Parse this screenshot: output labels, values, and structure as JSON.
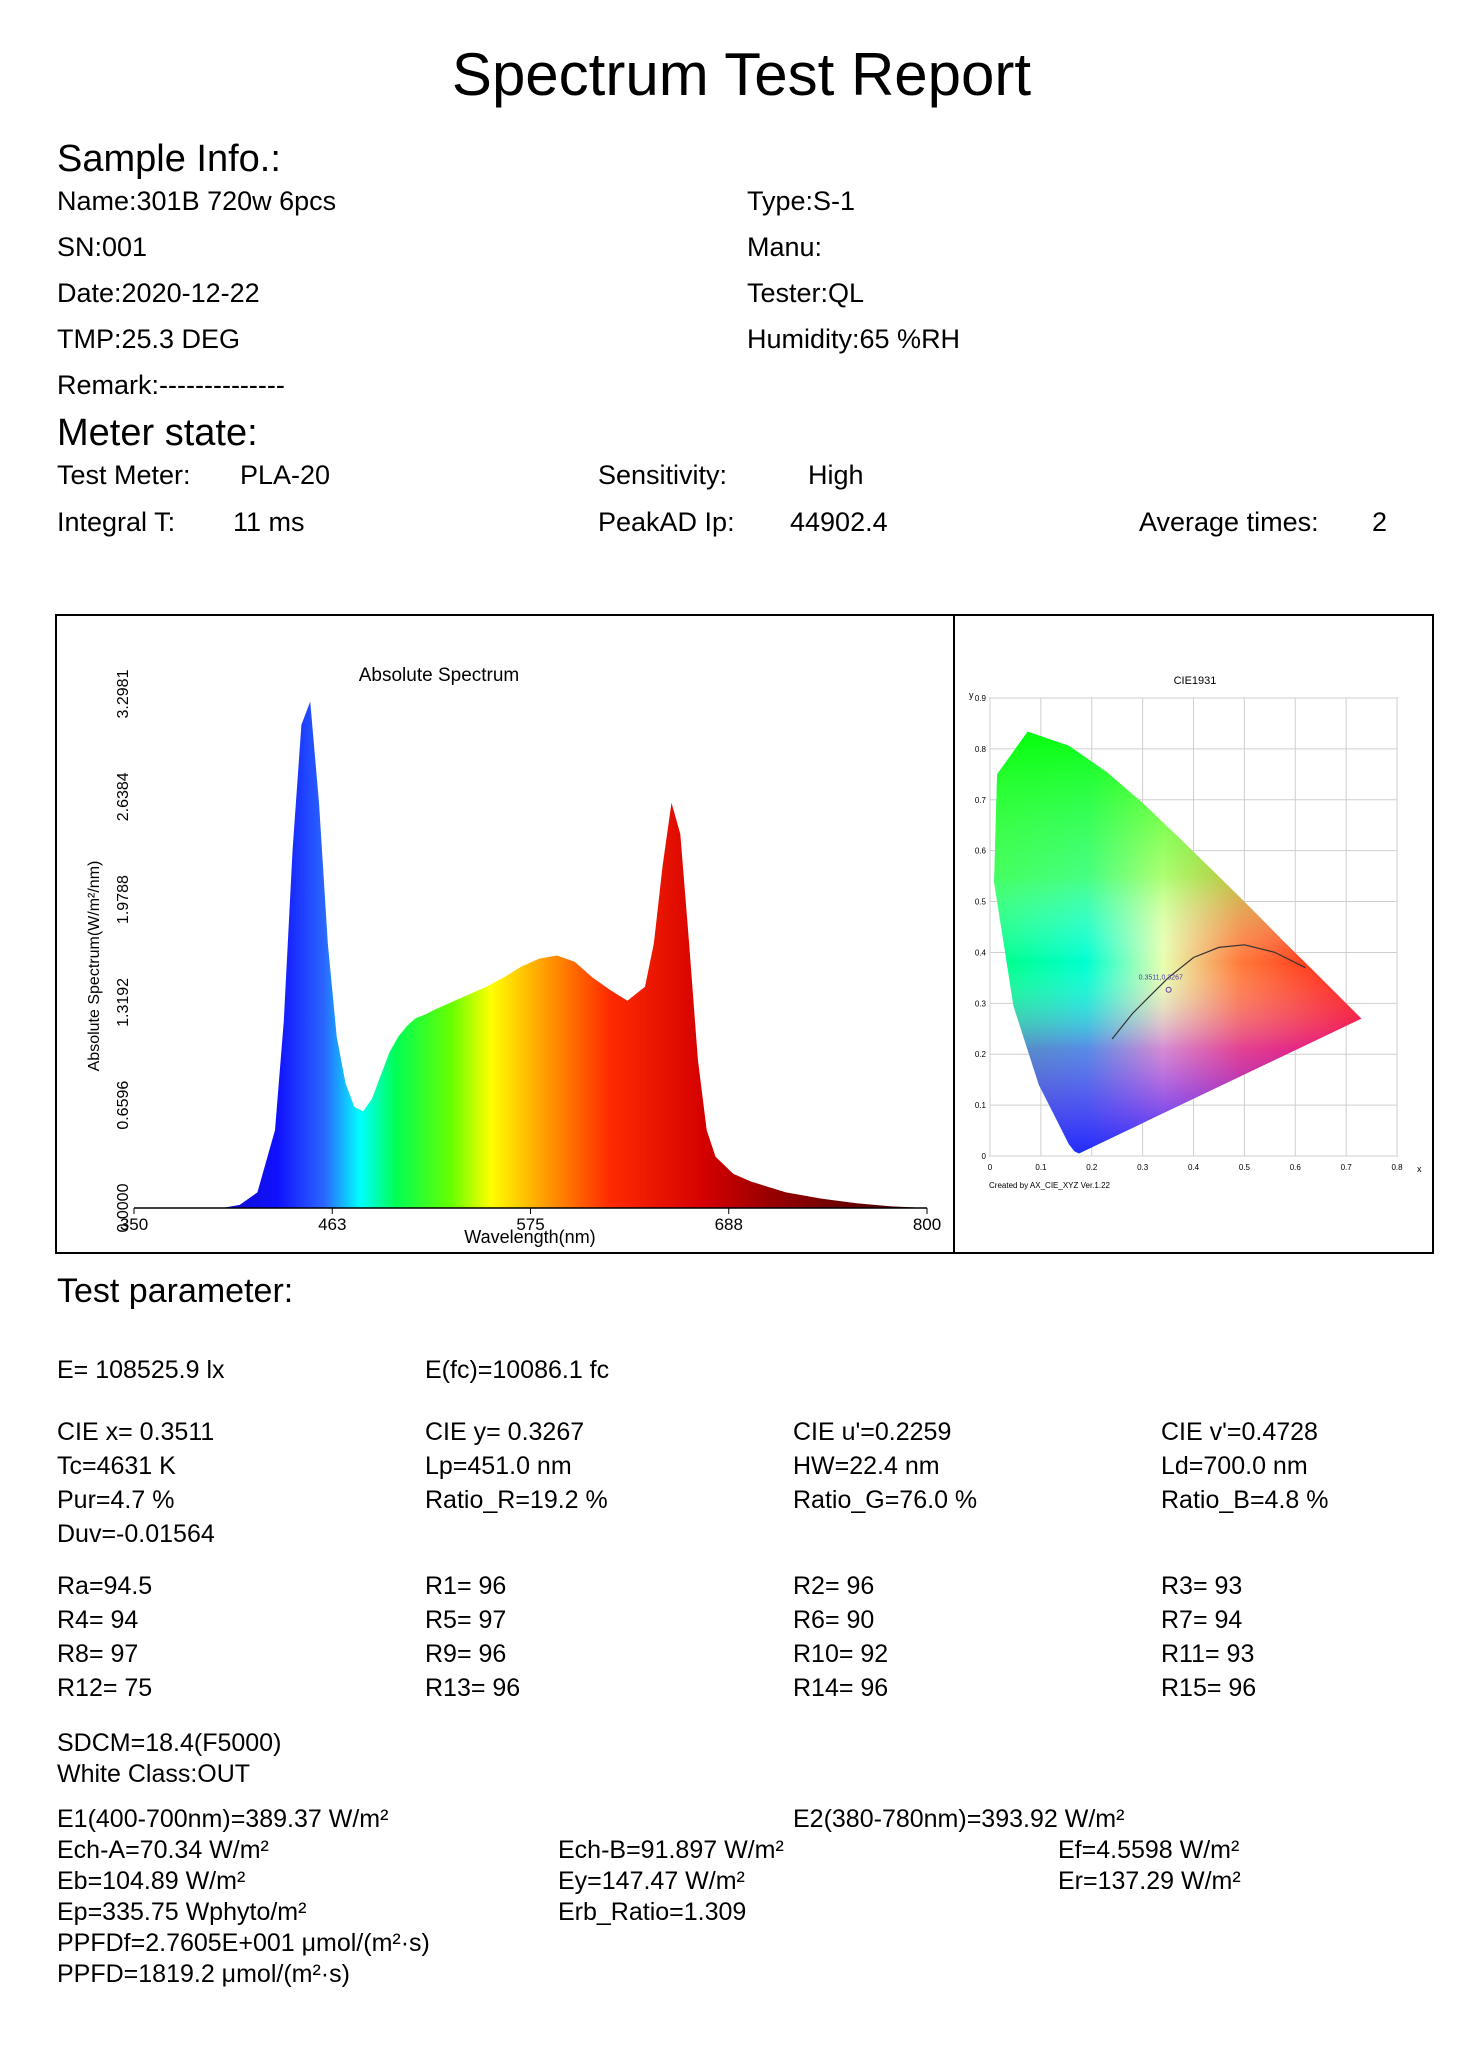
{
  "report_title": "Spectrum Test Report",
  "sample_info": {
    "heading": "Sample Info.:",
    "name": "Name:301B 720w 6pcs",
    "type": "Type:S-1",
    "sn": "SN:001",
    "manu": "Manu:",
    "date": "Date:2020-12-22",
    "tester": "Tester:QL",
    "tmp": "TMP:25.3 DEG",
    "humidity": "Humidity:65 %RH",
    "remark": "Remark:--------------"
  },
  "meter_state": {
    "heading": "Meter state:",
    "test_meter_label": "Test Meter:",
    "test_meter_value": "PLA-20",
    "sensitivity_label": "Sensitivity:",
    "sensitivity_value": "High",
    "integral_label": "Integral T:",
    "integral_value": "11 ms",
    "peakad_label": "PeakAD Ip:",
    "peakad_value": "44902.4",
    "avg_label": "Average times:",
    "avg_value": "2"
  },
  "chart_data": [
    {
      "type": "area",
      "title": "Absolute Spectrum",
      "xlabel": "Wavelength(nm)",
      "ylabel": "Absolute Spectrum(W/m²/nm)",
      "xlim": [
        350,
        800
      ],
      "ylim": [
        0,
        3.2981
      ],
      "x_ticks": [
        "350",
        "463",
        "575",
        "688",
        "800"
      ],
      "y_ticks": [
        "0.0000",
        "0.6596",
        "1.3192",
        "1.9788",
        "2.6384",
        "3.2981"
      ],
      "x": [
        350,
        400,
        410,
        420,
        430,
        435,
        440,
        445,
        450,
        455,
        460,
        465,
        470,
        475,
        480,
        485,
        490,
        495,
        500,
        505,
        510,
        515,
        520,
        530,
        540,
        550,
        560,
        570,
        580,
        590,
        600,
        610,
        620,
        630,
        640,
        645,
        650,
        655,
        660,
        665,
        670,
        675,
        680,
        690,
        700,
        720,
        740,
        760,
        780,
        800
      ],
      "y": [
        0.0,
        0.0,
        0.02,
        0.1,
        0.5,
        1.2,
        2.3,
        3.1,
        3.25,
        2.6,
        1.7,
        1.1,
        0.8,
        0.65,
        0.62,
        0.7,
        0.85,
        1.0,
        1.1,
        1.17,
        1.22,
        1.24,
        1.27,
        1.32,
        1.37,
        1.42,
        1.48,
        1.55,
        1.6,
        1.62,
        1.58,
        1.48,
        1.4,
        1.33,
        1.42,
        1.7,
        2.2,
        2.6,
        2.4,
        1.7,
        0.95,
        0.5,
        0.33,
        0.22,
        0.17,
        0.1,
        0.06,
        0.03,
        0.01,
        0.0
      ]
    },
    {
      "type": "scatter",
      "title": "CIE1931",
      "xlabel": "x",
      "ylabel": "y",
      "xlim": [
        0,
        0.8
      ],
      "ylim": [
        0,
        0.9
      ],
      "x_ticks": [
        "0",
        "0.1",
        "0.2",
        "0.3",
        "0.4",
        "0.5",
        "0.6",
        "0.7",
        "0.8"
      ],
      "y_ticks": [
        "0",
        "0.1",
        "0.2",
        "0.3",
        "0.4",
        "0.5",
        "0.6",
        "0.7",
        "0.8",
        "0.9"
      ],
      "point_label": "0.3511,0.3267",
      "point": [
        0.3511,
        0.3267
      ],
      "locus_x": [
        0.175,
        0.166,
        0.155,
        0.13,
        0.096,
        0.046,
        0.008,
        0.014,
        0.074,
        0.155,
        0.23,
        0.302,
        0.373,
        0.444,
        0.513,
        0.575,
        0.627,
        0.666,
        0.692,
        0.707,
        0.73
      ],
      "locus_y": [
        0.005,
        0.009,
        0.023,
        0.073,
        0.14,
        0.295,
        0.538,
        0.75,
        0.834,
        0.806,
        0.754,
        0.692,
        0.624,
        0.555,
        0.487,
        0.424,
        0.373,
        0.334,
        0.308,
        0.293,
        0.27
      ],
      "planck_x": [
        0.24,
        0.28,
        0.31,
        0.35,
        0.4,
        0.45,
        0.5,
        0.56,
        0.62
      ],
      "planck_y": [
        0.23,
        0.28,
        0.31,
        0.35,
        0.39,
        0.41,
        0.415,
        0.4,
        0.37
      ],
      "footer_note": "Created by AX_CIE_XYZ Ver.1.22"
    }
  ],
  "test_params": {
    "heading": "Test parameter:",
    "e": "E=  108525.9 lx",
    "efc": "E(fc)=10086.1 fc",
    "cie_x": "CIE x= 0.3511",
    "cie_y": "CIE y= 0.3267",
    "cie_u": "CIE u'=0.2259",
    "cie_v": "CIE v'=0.4728",
    "tc": "Tc=4631 K",
    "lp": "Lp=451.0 nm",
    "hw": "HW=22.4 nm",
    "ld": "Ld=700.0 nm",
    "pur": "Pur=4.7 %",
    "ratio_r": "Ratio_R=19.2 %",
    "ratio_g": "Ratio_G=76.0 %",
    "ratio_b": "Ratio_B=4.8 %",
    "duv": "Duv=-0.01564",
    "ra": "Ra=94.5",
    "r1": "R1= 96",
    "r2": "R2= 96",
    "r3": "R3= 93",
    "r4": "R4= 94",
    "r5": "R5= 97",
    "r6": "R6= 90",
    "r7": "R7= 94",
    "r8": "R8= 97",
    "r9": "R9= 96",
    "r10": "R10= 92",
    "r11": "R11= 93",
    "r12": "R12= 75",
    "r13": "R13= 96",
    "r14": "R14= 96",
    "r15": "R15= 96",
    "sdcm": "SDCM=18.4(F5000)",
    "white_class": "White Class:OUT",
    "e1": "E1(400-700nm)=389.37 W/m²",
    "e2": "E2(380-780nm)=393.92 W/m²",
    "ech_a": "Ech-A=70.34 W/m²",
    "ech_b": "Ech-B=91.897 W/m²",
    "ef": "Ef=4.5598 W/m²",
    "eb": "Eb=104.89 W/m²",
    "ey": "Ey=147.47 W/m²",
    "er": "Er=137.29 W/m²",
    "ep": "Ep=335.75 Wphyto/m²",
    "erb": "Erb_Ratio=1.309",
    "ppfdf": "PPFDf=2.7605E+001 μmol/(m²·s)",
    "ppfd": "PPFD=1819.2 μmol/(m²·s)"
  }
}
